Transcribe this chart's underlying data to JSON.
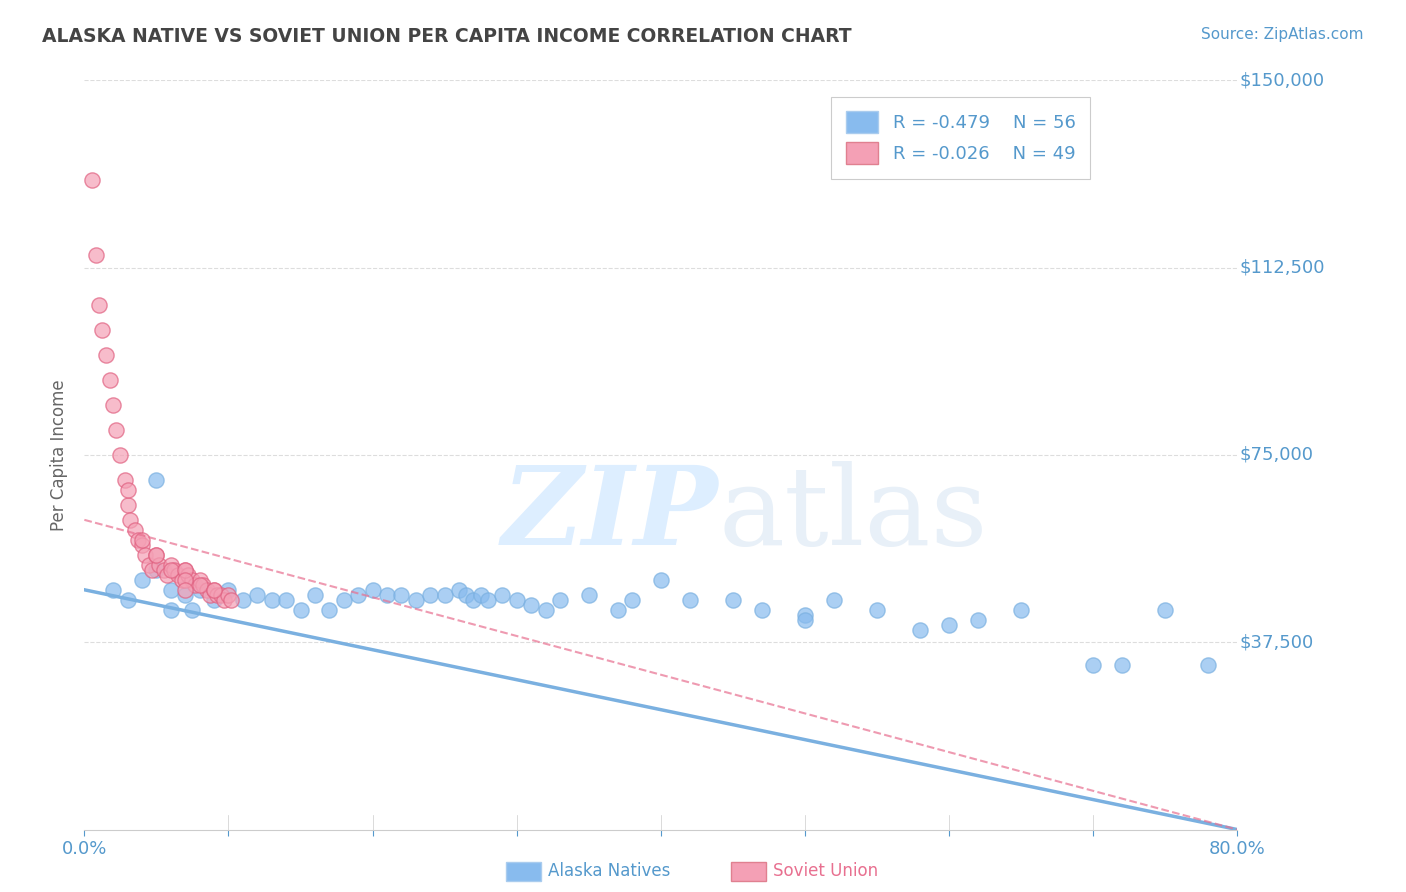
{
  "title": "ALASKA NATIVE VS SOVIET UNION PER CAPITA INCOME CORRELATION CHART",
  "source_text": "Source: ZipAtlas.com",
  "ylabel": "Per Capita Income",
  "xlim": [
    0.0,
    0.8
  ],
  "ylim": [
    0,
    150000
  ],
  "yticks": [
    0,
    37500,
    75000,
    112500,
    150000
  ],
  "ytick_labels": [
    "",
    "$37,500",
    "$75,000",
    "$112,500",
    "$150,000"
  ],
  "xtick_vals": [
    0.0,
    0.1,
    0.2,
    0.3,
    0.4,
    0.5,
    0.6,
    0.7,
    0.8
  ],
  "blue_color": "#7ab0e0",
  "blue_dot_color": "#88bbee",
  "pink_color": "#f4a0b5",
  "pink_line_color": "#e87090",
  "title_color": "#444444",
  "axis_label_color": "#666666",
  "tick_color": "#5599cc",
  "grid_color": "#dddddd",
  "watermark_color": "#ddeeff",
  "legend_label1": "Alaska Natives",
  "legend_label2": "Soviet Union",
  "legend_text_color": "#5599cc",
  "blue_scatter_x": [
    0.02,
    0.03,
    0.04,
    0.05,
    0.06,
    0.07,
    0.075,
    0.08,
    0.09,
    0.1,
    0.11,
    0.12,
    0.13,
    0.14,
    0.15,
    0.16,
    0.17,
    0.18,
    0.19,
    0.2,
    0.21,
    0.22,
    0.23,
    0.24,
    0.25,
    0.26,
    0.265,
    0.27,
    0.275,
    0.28,
    0.29,
    0.3,
    0.31,
    0.32,
    0.33,
    0.35,
    0.37,
    0.38,
    0.4,
    0.42,
    0.45,
    0.47,
    0.5,
    0.5,
    0.52,
    0.55,
    0.58,
    0.6,
    0.62,
    0.65,
    0.7,
    0.72,
    0.75,
    0.78,
    0.05,
    0.06
  ],
  "blue_scatter_y": [
    48000,
    46000,
    50000,
    52000,
    48000,
    47000,
    44000,
    48000,
    46000,
    48000,
    46000,
    47000,
    46000,
    46000,
    44000,
    47000,
    44000,
    46000,
    47000,
    48000,
    47000,
    47000,
    46000,
    47000,
    47000,
    48000,
    47000,
    46000,
    47000,
    46000,
    47000,
    46000,
    45000,
    44000,
    46000,
    47000,
    44000,
    46000,
    50000,
    46000,
    46000,
    44000,
    43000,
    42000,
    46000,
    44000,
    40000,
    41000,
    42000,
    44000,
    33000,
    33000,
    44000,
    33000,
    70000,
    44000
  ],
  "pink_scatter_x": [
    0.005,
    0.008,
    0.01,
    0.012,
    0.015,
    0.018,
    0.02,
    0.022,
    0.025,
    0.028,
    0.03,
    0.032,
    0.035,
    0.037,
    0.04,
    0.042,
    0.045,
    0.047,
    0.05,
    0.052,
    0.055,
    0.057,
    0.06,
    0.062,
    0.065,
    0.068,
    0.07,
    0.072,
    0.075,
    0.077,
    0.08,
    0.082,
    0.085,
    0.087,
    0.09,
    0.092,
    0.095,
    0.097,
    0.1,
    0.102,
    0.03,
    0.04,
    0.05,
    0.06,
    0.07,
    0.07,
    0.07,
    0.08,
    0.09
  ],
  "pink_scatter_y": [
    130000,
    115000,
    105000,
    100000,
    95000,
    90000,
    85000,
    80000,
    75000,
    70000,
    65000,
    62000,
    60000,
    58000,
    57000,
    55000,
    53000,
    52000,
    55000,
    53000,
    52000,
    51000,
    53000,
    52000,
    51000,
    50000,
    52000,
    51000,
    50000,
    49000,
    50000,
    49000,
    48000,
    47000,
    48000,
    47000,
    47000,
    46000,
    47000,
    46000,
    68000,
    58000,
    55000,
    52000,
    52000,
    50000,
    48000,
    49000,
    48000
  ],
  "blue_line_x": [
    0.0,
    0.8
  ],
  "blue_line_y": [
    48000,
    0
  ],
  "pink_line_x": [
    0.0,
    0.8
  ],
  "pink_line_y": [
    62000,
    0
  ],
  "background_color": "#ffffff"
}
